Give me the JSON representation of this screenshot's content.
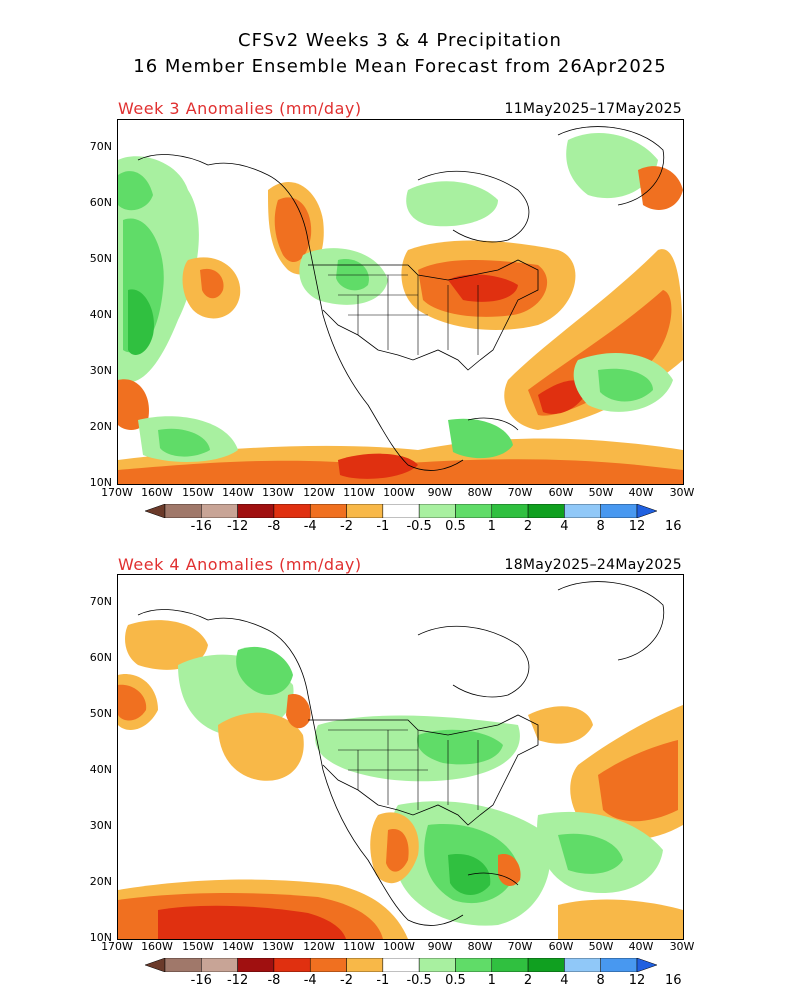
{
  "header": {
    "title_line1": "CFSv2 Weeks 3 & 4 Precipitation",
    "title_line2": "16 Member Ensemble Mean Forecast from 26Apr2025"
  },
  "panels": [
    {
      "label": "Week 3 Anomalies (mm/day)",
      "dates": "11May2025–17May2025"
    },
    {
      "label": "Week 4 Anomalies (mm/day)",
      "dates": "18May2025–24May2025"
    }
  ],
  "axes": {
    "lat_labels": [
      "70N",
      "60N",
      "50N",
      "40N",
      "30N",
      "20N",
      "10N"
    ],
    "lon_labels": [
      "170W",
      "160W",
      "150W",
      "140W",
      "130W",
      "120W",
      "110W",
      "100W",
      "90W",
      "80W",
      "70W",
      "60W",
      "50W",
      "40W",
      "30W"
    ]
  },
  "colorbar": {
    "labels": [
      "-16",
      "-12",
      "-8",
      "-4",
      "-2",
      "-1",
      "-0.5",
      "0.5",
      "1",
      "2",
      "4",
      "8",
      "12",
      "16"
    ],
    "colors": [
      "#6b3a2a",
      "#a0786a",
      "#c8a496",
      "#a01010",
      "#e03010",
      "#f07020",
      "#f8b848",
      "#ffffff",
      "#a8f0a0",
      "#60dc68",
      "#30c040",
      "#10a020",
      "#90c8f8",
      "#4898f0",
      "#2060e0"
    ]
  }
}
